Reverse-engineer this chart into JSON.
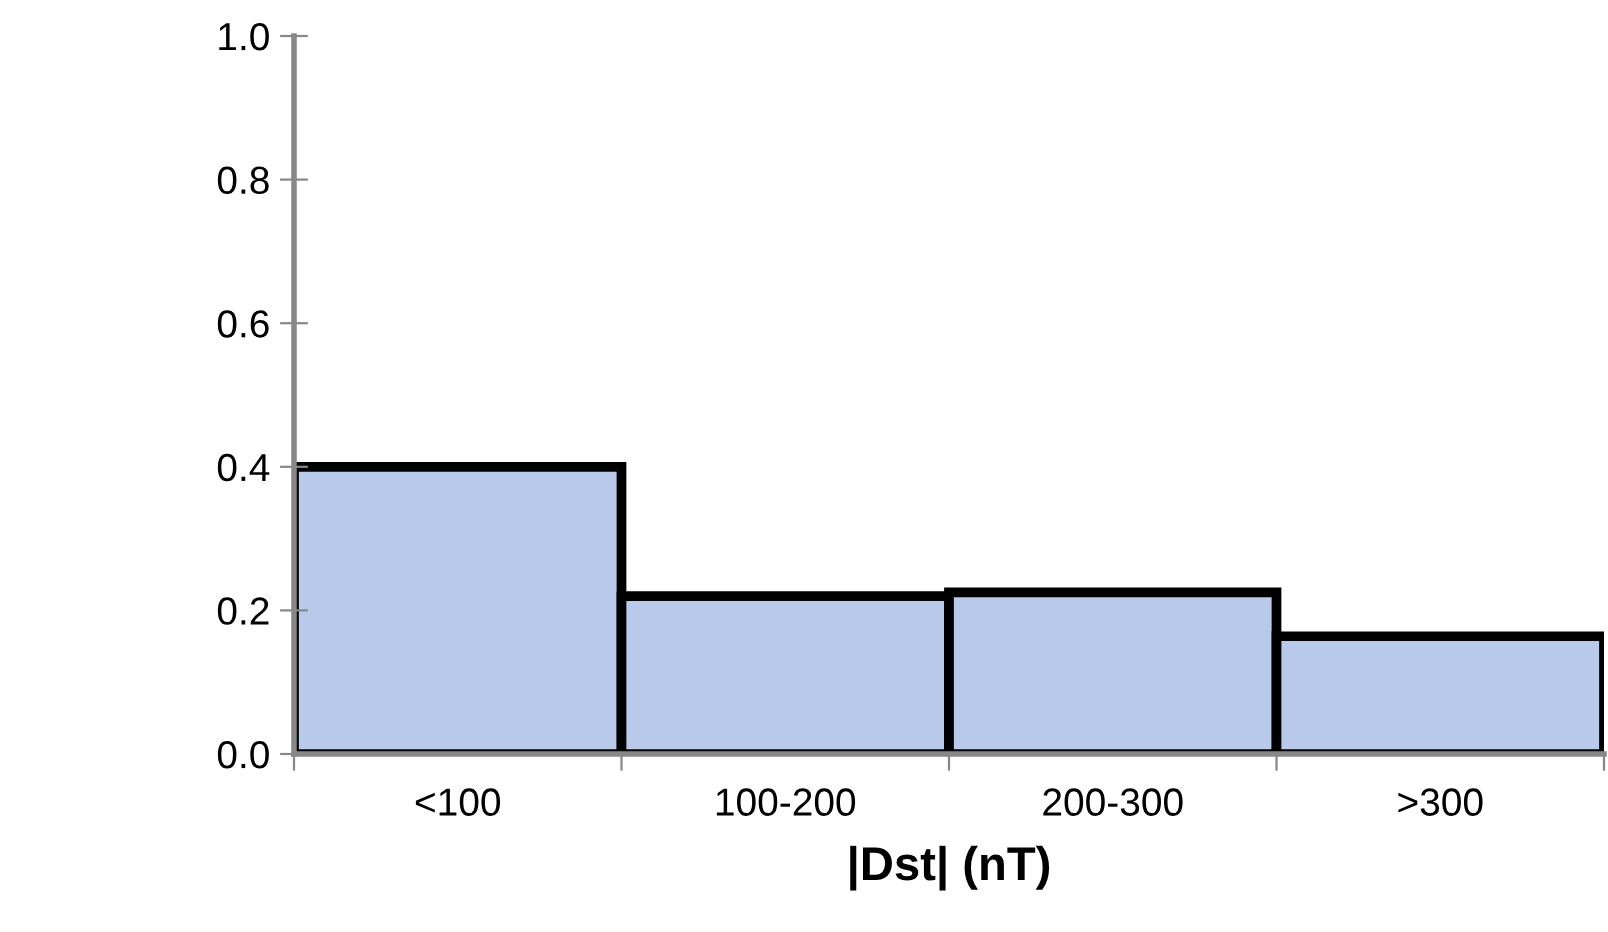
{
  "chart_data": {
    "type": "bar",
    "xlabel": "|Dst| (nT)",
    "categories": [
      "<100",
      "100-200",
      "200-300",
      ">300"
    ],
    "values": [
      0.4,
      0.22,
      0.225,
      0.164
    ],
    "color": "#b9c9ea",
    "ylim": [
      0,
      1.0
    ],
    "yticks": [
      {
        "value": 0,
        "label": "0.0"
      },
      0.2,
      0.4,
      0.6,
      0.8,
      {
        "value": 1.0,
        "label": "1.0"
      }
    ],
    "grid": false
  }
}
